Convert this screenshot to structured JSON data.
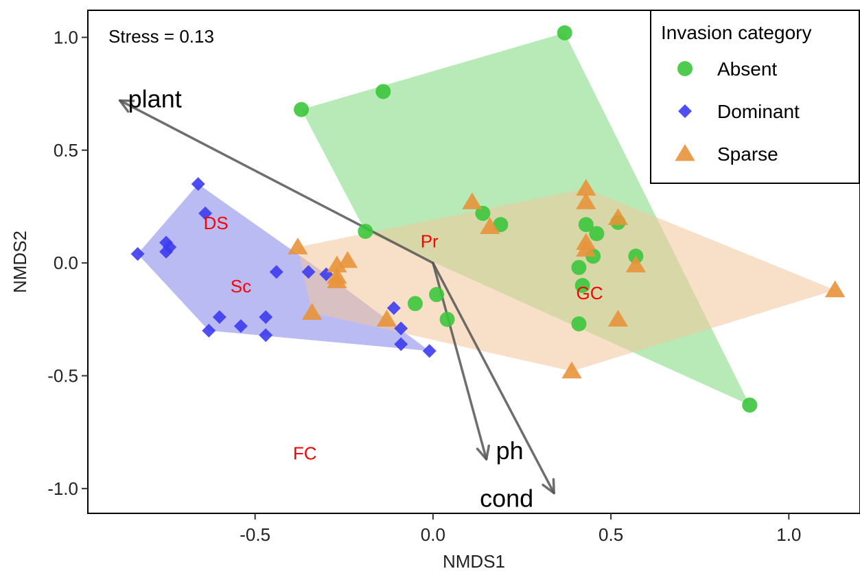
{
  "chart_data": {
    "type": "scatter",
    "xlabel": "NMDS1",
    "ylabel": "NMDS2",
    "xlim": [
      -0.97,
      1.2
    ],
    "ylim": [
      -1.11,
      1.12
    ],
    "xticks": [
      -0.5,
      0.0,
      0.5,
      1.0
    ],
    "yticks": [
      -1.0,
      -0.5,
      0.0,
      0.5,
      1.0
    ],
    "xtick_labels": [
      "-0.5",
      "0.0",
      "0.5",
      "1.0"
    ],
    "ytick_labels": [
      "-1.0",
      "-0.5",
      "0.0",
      "0.5",
      "1.0"
    ],
    "grid": false,
    "legend_placement": "top-right",
    "annotation": "Stress = 0.13",
    "legend": {
      "title": "Invasion category"
    },
    "series": [
      {
        "name": "Absent",
        "marker": "circle",
        "color": "#3cc63c",
        "hull_color": "#7ed87e",
        "hull": [
          [
            -0.37,
            0.68
          ],
          [
            0.37,
            1.02
          ],
          [
            0.89,
            -0.63
          ],
          [
            -0.19,
            0.14
          ]
        ],
        "points": [
          [
            0.37,
            1.02
          ],
          [
            -0.14,
            0.76
          ],
          [
            -0.37,
            0.68
          ],
          [
            -0.19,
            0.14
          ],
          [
            0.14,
            0.22
          ],
          [
            0.19,
            0.17
          ],
          [
            0.43,
            0.17
          ],
          [
            0.46,
            0.13
          ],
          [
            0.52,
            0.18
          ],
          [
            0.57,
            0.03
          ],
          [
            0.45,
            0.03
          ],
          [
            0.41,
            -0.02
          ],
          [
            0.42,
            -0.1
          ],
          [
            0.01,
            -0.14
          ],
          [
            -0.05,
            -0.18
          ],
          [
            0.04,
            -0.25
          ],
          [
            0.41,
            -0.27
          ],
          [
            0.89,
            -0.63
          ]
        ]
      },
      {
        "name": "Dominant",
        "marker": "diamond",
        "color": "#3c3cf0",
        "hull_color": "#8484ea",
        "hull": [
          [
            -0.66,
            0.35
          ],
          [
            -0.3,
            -0.05
          ],
          [
            -0.01,
            -0.39
          ],
          [
            -0.63,
            -0.3
          ],
          [
            -0.83,
            0.04
          ]
        ],
        "points": [
          [
            -0.66,
            0.35
          ],
          [
            -0.64,
            0.22
          ],
          [
            -0.75,
            0.09
          ],
          [
            -0.74,
            0.07
          ],
          [
            -0.75,
            0.05
          ],
          [
            -0.83,
            0.04
          ],
          [
            -0.44,
            -0.04
          ],
          [
            -0.35,
            -0.04
          ],
          [
            -0.3,
            -0.05
          ],
          [
            -0.11,
            -0.2
          ],
          [
            -0.6,
            -0.24
          ],
          [
            -0.47,
            -0.24
          ],
          [
            -0.09,
            -0.29
          ],
          [
            -0.63,
            -0.3
          ],
          [
            -0.54,
            -0.28
          ],
          [
            -0.47,
            -0.32
          ],
          [
            -0.09,
            -0.36
          ],
          [
            -0.01,
            -0.39
          ]
        ]
      },
      {
        "name": "Sparse",
        "marker": "triangle",
        "color": "#e8943a",
        "hull_color": "#f2c79a",
        "hull": [
          [
            -0.38,
            0.07
          ],
          [
            0.43,
            0.33
          ],
          [
            1.13,
            -0.12
          ],
          [
            0.39,
            -0.48
          ],
          [
            -0.34,
            -0.22
          ]
        ],
        "points": [
          [
            0.43,
            0.33
          ],
          [
            0.43,
            0.27
          ],
          [
            0.11,
            0.27
          ],
          [
            0.52,
            0.2
          ],
          [
            0.16,
            0.16
          ],
          [
            0.43,
            0.09
          ],
          [
            0.43,
            0.06
          ],
          [
            -0.38,
            0.07
          ],
          [
            -0.24,
            0.01
          ],
          [
            -0.27,
            -0.01
          ],
          [
            0.57,
            -0.01
          ],
          [
            -0.27,
            -0.06
          ],
          [
            -0.27,
            -0.08
          ],
          [
            -0.34,
            -0.22
          ],
          [
            -0.13,
            -0.25
          ],
          [
            0.52,
            -0.25
          ],
          [
            1.13,
            -0.12
          ],
          [
            0.39,
            -0.48
          ]
        ]
      }
    ],
    "vectors": [
      {
        "label": "plant",
        "end": [
          -0.88,
          0.72
        ]
      },
      {
        "label": "ph",
        "end": [
          0.15,
          -0.87
        ]
      },
      {
        "label": "cond",
        "end": [
          0.34,
          -1.02
        ]
      }
    ],
    "site_labels": [
      {
        "text": "DS",
        "x": -0.61,
        "y": 0.17
      },
      {
        "text": "Pr",
        "x": -0.01,
        "y": 0.09
      },
      {
        "text": "Sc",
        "x": -0.54,
        "y": -0.11
      },
      {
        "text": "GC",
        "x": 0.44,
        "y": -0.14
      },
      {
        "text": "FC",
        "x": -0.36,
        "y": -0.85
      }
    ]
  }
}
